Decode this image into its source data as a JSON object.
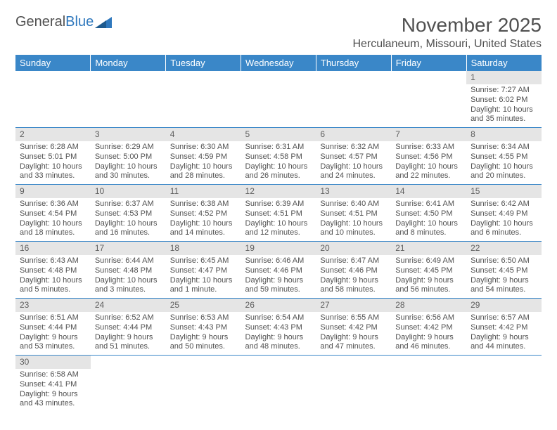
{
  "logo": {
    "word1": "General",
    "word2": "Blue"
  },
  "title": "November 2025",
  "location": "Herculaneum, Missouri, United States",
  "colors": {
    "header_bg": "#3a87c8",
    "header_fg": "#ffffff",
    "daynum_bg": "#e5e5e5",
    "border": "#3a87c8",
    "text": "#505050"
  },
  "weekdays": [
    "Sunday",
    "Monday",
    "Tuesday",
    "Wednesday",
    "Thursday",
    "Friday",
    "Saturday"
  ],
  "weeks": [
    [
      null,
      null,
      null,
      null,
      null,
      null,
      {
        "n": "1",
        "sunrise": "Sunrise: 7:27 AM",
        "sunset": "Sunset: 6:02 PM",
        "daylight1": "Daylight: 10 hours",
        "daylight2": "and 35 minutes."
      }
    ],
    [
      {
        "n": "2",
        "sunrise": "Sunrise: 6:28 AM",
        "sunset": "Sunset: 5:01 PM",
        "daylight1": "Daylight: 10 hours",
        "daylight2": "and 33 minutes."
      },
      {
        "n": "3",
        "sunrise": "Sunrise: 6:29 AM",
        "sunset": "Sunset: 5:00 PM",
        "daylight1": "Daylight: 10 hours",
        "daylight2": "and 30 minutes."
      },
      {
        "n": "4",
        "sunrise": "Sunrise: 6:30 AM",
        "sunset": "Sunset: 4:59 PM",
        "daylight1": "Daylight: 10 hours",
        "daylight2": "and 28 minutes."
      },
      {
        "n": "5",
        "sunrise": "Sunrise: 6:31 AM",
        "sunset": "Sunset: 4:58 PM",
        "daylight1": "Daylight: 10 hours",
        "daylight2": "and 26 minutes."
      },
      {
        "n": "6",
        "sunrise": "Sunrise: 6:32 AM",
        "sunset": "Sunset: 4:57 PM",
        "daylight1": "Daylight: 10 hours",
        "daylight2": "and 24 minutes."
      },
      {
        "n": "7",
        "sunrise": "Sunrise: 6:33 AM",
        "sunset": "Sunset: 4:56 PM",
        "daylight1": "Daylight: 10 hours",
        "daylight2": "and 22 minutes."
      },
      {
        "n": "8",
        "sunrise": "Sunrise: 6:34 AM",
        "sunset": "Sunset: 4:55 PM",
        "daylight1": "Daylight: 10 hours",
        "daylight2": "and 20 minutes."
      }
    ],
    [
      {
        "n": "9",
        "sunrise": "Sunrise: 6:36 AM",
        "sunset": "Sunset: 4:54 PM",
        "daylight1": "Daylight: 10 hours",
        "daylight2": "and 18 minutes."
      },
      {
        "n": "10",
        "sunrise": "Sunrise: 6:37 AM",
        "sunset": "Sunset: 4:53 PM",
        "daylight1": "Daylight: 10 hours",
        "daylight2": "and 16 minutes."
      },
      {
        "n": "11",
        "sunrise": "Sunrise: 6:38 AM",
        "sunset": "Sunset: 4:52 PM",
        "daylight1": "Daylight: 10 hours",
        "daylight2": "and 14 minutes."
      },
      {
        "n": "12",
        "sunrise": "Sunrise: 6:39 AM",
        "sunset": "Sunset: 4:51 PM",
        "daylight1": "Daylight: 10 hours",
        "daylight2": "and 12 minutes."
      },
      {
        "n": "13",
        "sunrise": "Sunrise: 6:40 AM",
        "sunset": "Sunset: 4:51 PM",
        "daylight1": "Daylight: 10 hours",
        "daylight2": "and 10 minutes."
      },
      {
        "n": "14",
        "sunrise": "Sunrise: 6:41 AM",
        "sunset": "Sunset: 4:50 PM",
        "daylight1": "Daylight: 10 hours",
        "daylight2": "and 8 minutes."
      },
      {
        "n": "15",
        "sunrise": "Sunrise: 6:42 AM",
        "sunset": "Sunset: 4:49 PM",
        "daylight1": "Daylight: 10 hours",
        "daylight2": "and 6 minutes."
      }
    ],
    [
      {
        "n": "16",
        "sunrise": "Sunrise: 6:43 AM",
        "sunset": "Sunset: 4:48 PM",
        "daylight1": "Daylight: 10 hours",
        "daylight2": "and 5 minutes."
      },
      {
        "n": "17",
        "sunrise": "Sunrise: 6:44 AM",
        "sunset": "Sunset: 4:48 PM",
        "daylight1": "Daylight: 10 hours",
        "daylight2": "and 3 minutes."
      },
      {
        "n": "18",
        "sunrise": "Sunrise: 6:45 AM",
        "sunset": "Sunset: 4:47 PM",
        "daylight1": "Daylight: 10 hours",
        "daylight2": "and 1 minute."
      },
      {
        "n": "19",
        "sunrise": "Sunrise: 6:46 AM",
        "sunset": "Sunset: 4:46 PM",
        "daylight1": "Daylight: 9 hours",
        "daylight2": "and 59 minutes."
      },
      {
        "n": "20",
        "sunrise": "Sunrise: 6:47 AM",
        "sunset": "Sunset: 4:46 PM",
        "daylight1": "Daylight: 9 hours",
        "daylight2": "and 58 minutes."
      },
      {
        "n": "21",
        "sunrise": "Sunrise: 6:49 AM",
        "sunset": "Sunset: 4:45 PM",
        "daylight1": "Daylight: 9 hours",
        "daylight2": "and 56 minutes."
      },
      {
        "n": "22",
        "sunrise": "Sunrise: 6:50 AM",
        "sunset": "Sunset: 4:45 PM",
        "daylight1": "Daylight: 9 hours",
        "daylight2": "and 54 minutes."
      }
    ],
    [
      {
        "n": "23",
        "sunrise": "Sunrise: 6:51 AM",
        "sunset": "Sunset: 4:44 PM",
        "daylight1": "Daylight: 9 hours",
        "daylight2": "and 53 minutes."
      },
      {
        "n": "24",
        "sunrise": "Sunrise: 6:52 AM",
        "sunset": "Sunset: 4:44 PM",
        "daylight1": "Daylight: 9 hours",
        "daylight2": "and 51 minutes."
      },
      {
        "n": "25",
        "sunrise": "Sunrise: 6:53 AM",
        "sunset": "Sunset: 4:43 PM",
        "daylight1": "Daylight: 9 hours",
        "daylight2": "and 50 minutes."
      },
      {
        "n": "26",
        "sunrise": "Sunrise: 6:54 AM",
        "sunset": "Sunset: 4:43 PM",
        "daylight1": "Daylight: 9 hours",
        "daylight2": "and 48 minutes."
      },
      {
        "n": "27",
        "sunrise": "Sunrise: 6:55 AM",
        "sunset": "Sunset: 4:42 PM",
        "daylight1": "Daylight: 9 hours",
        "daylight2": "and 47 minutes."
      },
      {
        "n": "28",
        "sunrise": "Sunrise: 6:56 AM",
        "sunset": "Sunset: 4:42 PM",
        "daylight1": "Daylight: 9 hours",
        "daylight2": "and 46 minutes."
      },
      {
        "n": "29",
        "sunrise": "Sunrise: 6:57 AM",
        "sunset": "Sunset: 4:42 PM",
        "daylight1": "Daylight: 9 hours",
        "daylight2": "and 44 minutes."
      }
    ],
    [
      {
        "n": "30",
        "sunrise": "Sunrise: 6:58 AM",
        "sunset": "Sunset: 4:41 PM",
        "daylight1": "Daylight: 9 hours",
        "daylight2": "and 43 minutes."
      },
      null,
      null,
      null,
      null,
      null,
      null
    ]
  ]
}
